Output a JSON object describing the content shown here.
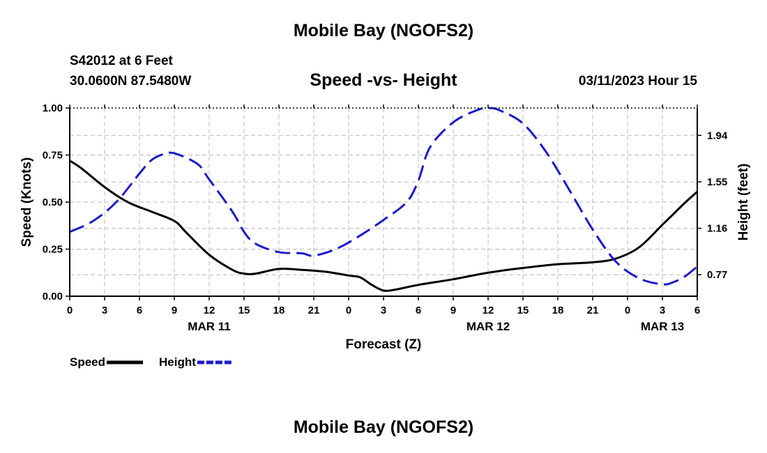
{
  "header": {
    "title": "Mobile Bay (NGOFS2)",
    "station": "S42012 at 6 Feet",
    "coordinates": "30.0600N  87.5480W",
    "subtitle": "Speed -vs- Height",
    "datetime": "03/11/2023 Hour 15"
  },
  "footer": {
    "title": "Mobile Bay (NGOFS2)"
  },
  "chart_data": {
    "type": "line",
    "title": "Speed -vs- Height",
    "xlabel": "Forecast (Z)",
    "ylabel": "Speed (Knots)",
    "y2label": "Height (feet)",
    "x_range": [
      0,
      54
    ],
    "x_unit": "hours from 00Z MAR 11",
    "x_tick_labels": [
      "0",
      "3",
      "6",
      "9",
      "12",
      "15",
      "18",
      "21",
      "0",
      "3",
      "6",
      "9",
      "12",
      "15",
      "18",
      "21",
      "0",
      "3",
      "6"
    ],
    "day_labels": [
      {
        "label": "MAR 11",
        "hour": 12
      },
      {
        "label": "MAR 12",
        "hour": 36
      },
      {
        "label": "MAR 13",
        "hour": 51
      }
    ],
    "ylim": [
      0,
      1.0
    ],
    "y_ticks": [
      "0.00",
      "0.25",
      "0.50",
      "0.75",
      "1.00"
    ],
    "y2lim": [
      0.59,
      2.17
    ],
    "y2_ticks": [
      "0.77",
      "1.16",
      "1.55",
      "1.94"
    ],
    "grid": true,
    "legend": "bottom-left",
    "series": [
      {
        "name": "Speed",
        "axis": "left",
        "color": "#000000",
        "style": "solid",
        "x": [
          0,
          1,
          3,
          5,
          7,
          9,
          10,
          12,
          14,
          15,
          16,
          18,
          20,
          22,
          24,
          25,
          26,
          27,
          28,
          30,
          33,
          36,
          39,
          42,
          45,
          47,
          49,
          51,
          52,
          53,
          54
        ],
        "values": [
          0.72,
          0.68,
          0.58,
          0.5,
          0.45,
          0.4,
          0.34,
          0.22,
          0.14,
          0.12,
          0.12,
          0.145,
          0.14,
          0.13,
          0.11,
          0.1,
          0.06,
          0.03,
          0.035,
          0.06,
          0.09,
          0.125,
          0.15,
          0.17,
          0.18,
          0.2,
          0.26,
          0.38,
          0.44,
          0.5,
          0.555
        ]
      },
      {
        "name": "Height",
        "axis": "right",
        "color": "#1a1acc",
        "style": "dashed",
        "x": [
          0,
          2,
          4,
          6,
          7,
          8,
          9,
          11,
          12,
          14,
          15,
          16,
          18,
          20,
          21,
          23,
          25,
          27,
          29,
          30,
          31,
          33,
          35,
          36,
          37,
          39,
          41,
          43,
          45,
          47,
          49,
          51,
          52,
          53,
          54
        ],
        "values": [
          1.13,
          1.22,
          1.38,
          1.62,
          1.73,
          1.78,
          1.79,
          1.7,
          1.57,
          1.3,
          1.13,
          1.03,
          0.96,
          0.95,
          0.93,
          0.99,
          1.1,
          1.23,
          1.38,
          1.56,
          1.84,
          2.05,
          2.15,
          2.17,
          2.15,
          2.04,
          1.8,
          1.48,
          1.15,
          0.88,
          0.74,
          0.69,
          0.71,
          0.76,
          0.84
        ]
      }
    ]
  }
}
